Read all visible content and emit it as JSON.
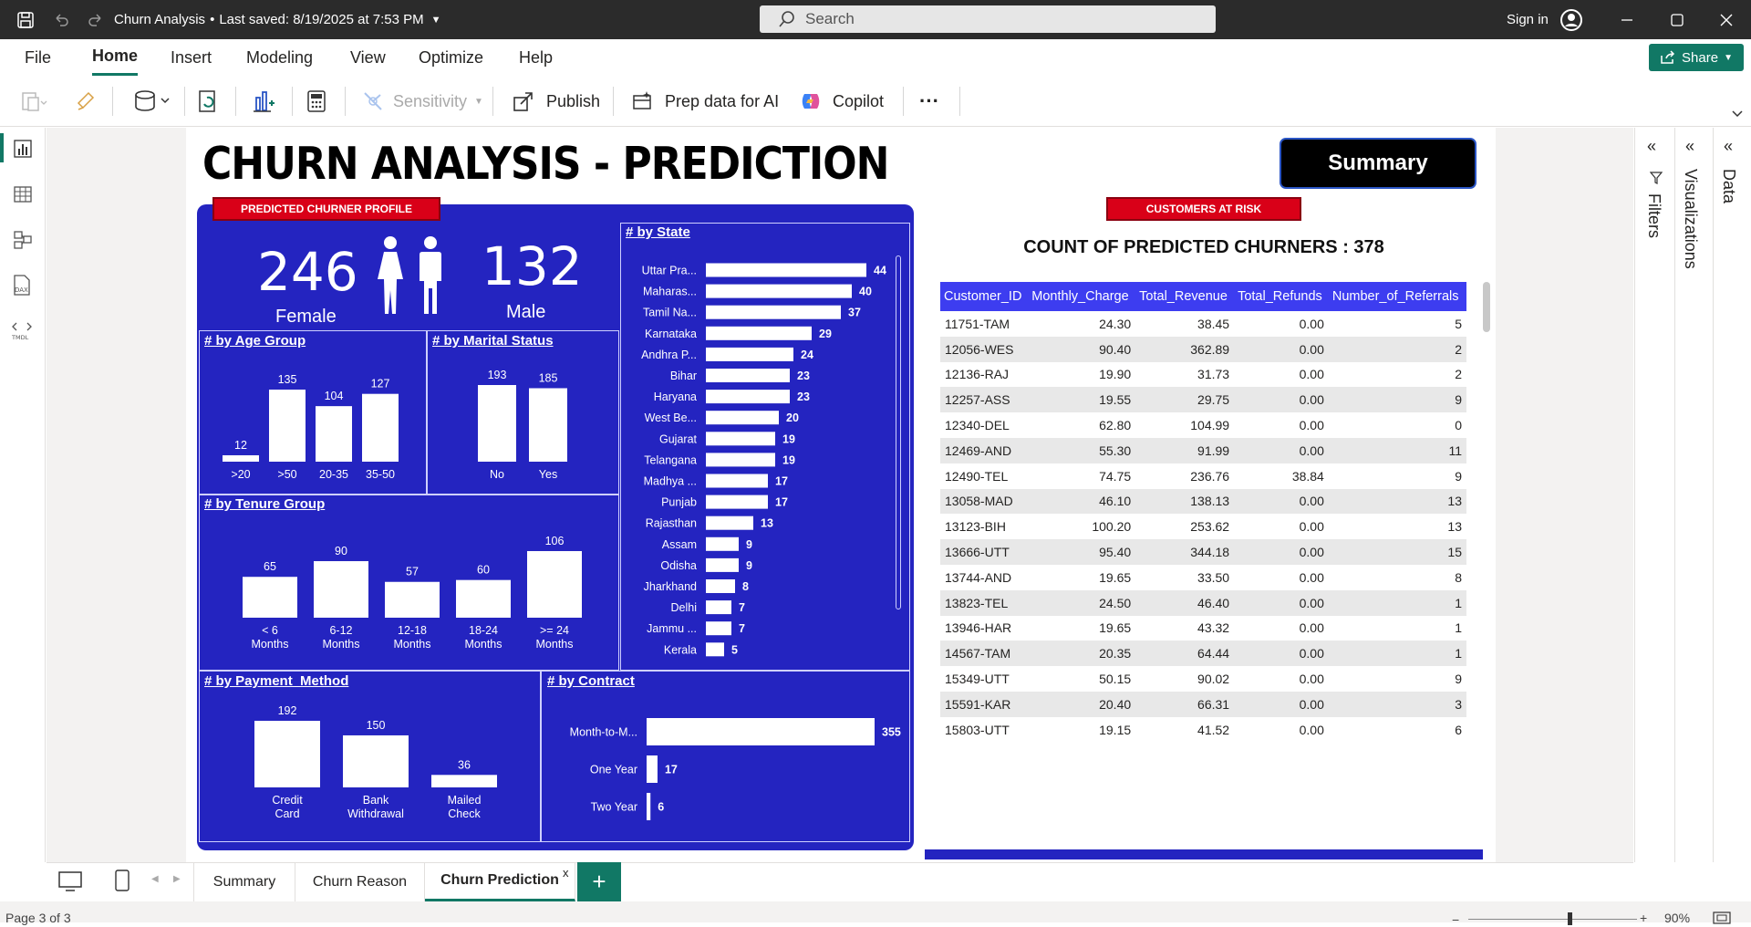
{
  "app": {
    "title": "Churn Analysis",
    "saved": "Last saved: 8/19/2025 at 7:53 PM",
    "search_placeholder": "Search",
    "signin": "Sign in"
  },
  "menu": [
    "File",
    "Home",
    "Insert",
    "Modeling",
    "View",
    "Optimize",
    "Help"
  ],
  "share_label": "Share",
  "toolbar": {
    "sensitivity": "Sensitivity",
    "publish": "Publish",
    "prep_ai": "Prep data for AI",
    "copilot": "Copilot",
    "more": "···"
  },
  "right_panes": [
    "Filters",
    "Visualizations",
    "Data"
  ],
  "report": {
    "title": "CHURN ANALYSIS - PREDICTION",
    "summary_button": "Summary",
    "profile_tag": "PREDICTED CHURNER PROFILE",
    "risk_tag": "CUSTOMERS AT RISK",
    "female_count": "246",
    "female_label": "Female",
    "male_count": "132",
    "male_label": "Male",
    "count_label": "COUNT OF PREDICTED CHURNERS : 378"
  },
  "chart_data": [
    {
      "type": "bar",
      "title": "# by Age Group",
      "categories": [
        ">20",
        ">50",
        "20-35",
        "35-50"
      ],
      "values": [
        12,
        135,
        104,
        127
      ]
    },
    {
      "type": "bar",
      "title": "# by Marital Status",
      "categories": [
        "No",
        "Yes"
      ],
      "values": [
        193,
        185
      ]
    },
    {
      "type": "bar",
      "title": "# by Tenure Group",
      "categories": [
        "< 6 Months",
        "6-12 Months",
        "12-18 Months",
        "18-24 Months",
        ">= 24 Months"
      ],
      "values": [
        65,
        90,
        57,
        60,
        106
      ]
    },
    {
      "type": "bar",
      "orientation": "horizontal",
      "title": "# by State",
      "categories": [
        "Uttar Pra...",
        "Maharas...",
        "Tamil Na...",
        "Karnataka",
        "Andhra P...",
        "Bihar",
        "Haryana",
        "West Be...",
        "Gujarat",
        "Telangana",
        "Madhya ...",
        "Punjab",
        "Rajasthan",
        "Assam",
        "Odisha",
        "Jharkhand",
        "Delhi",
        "Jammu ...",
        "Kerala"
      ],
      "values": [
        44,
        40,
        37,
        29,
        24,
        23,
        23,
        20,
        19,
        19,
        17,
        17,
        13,
        9,
        9,
        8,
        7,
        7,
        5
      ]
    },
    {
      "type": "bar",
      "title": "# by Payment_Method",
      "categories": [
        "Credit Card",
        "Bank Withdrawal",
        "Mailed Check"
      ],
      "values": [
        192,
        150,
        36
      ]
    },
    {
      "type": "bar",
      "orientation": "horizontal",
      "title": "# by Contract",
      "categories": [
        "Month-to-M...",
        "One Year",
        "Two Year"
      ],
      "values": [
        355,
        17,
        6
      ]
    }
  ],
  "table": {
    "columns": [
      "Customer_ID",
      "Monthly_Charge",
      "Total_Revenue",
      "Total_Refunds",
      "Number_of_Referrals"
    ],
    "rows": [
      [
        "11751-TAM",
        "24.30",
        "38.45",
        "0.00",
        "5"
      ],
      [
        "12056-WES",
        "90.40",
        "362.89",
        "0.00",
        "2"
      ],
      [
        "12136-RAJ",
        "19.90",
        "31.73",
        "0.00",
        "2"
      ],
      [
        "12257-ASS",
        "19.55",
        "29.75",
        "0.00",
        "9"
      ],
      [
        "12340-DEL",
        "62.80",
        "104.99",
        "0.00",
        "0"
      ],
      [
        "12469-AND",
        "55.30",
        "91.99",
        "0.00",
        "11"
      ],
      [
        "12490-TEL",
        "74.75",
        "236.76",
        "38.84",
        "9"
      ],
      [
        "13058-MAD",
        "46.10",
        "138.13",
        "0.00",
        "13"
      ],
      [
        "13123-BIH",
        "100.20",
        "253.62",
        "0.00",
        "13"
      ],
      [
        "13666-UTT",
        "95.40",
        "344.18",
        "0.00",
        "15"
      ],
      [
        "13744-AND",
        "19.65",
        "33.50",
        "0.00",
        "8"
      ],
      [
        "13823-TEL",
        "24.50",
        "46.40",
        "0.00",
        "1"
      ],
      [
        "13946-HAR",
        "19.65",
        "43.32",
        "0.00",
        "1"
      ],
      [
        "14567-TAM",
        "20.35",
        "64.44",
        "0.00",
        "1"
      ],
      [
        "15349-UTT",
        "50.15",
        "90.02",
        "0.00",
        "9"
      ],
      [
        "15591-KAR",
        "20.40",
        "66.31",
        "0.00",
        "3"
      ],
      [
        "15803-UTT",
        "19.15",
        "41.52",
        "0.00",
        "6"
      ]
    ]
  },
  "tabs": [
    "Summary",
    "Churn Reason",
    "Churn Prediction"
  ],
  "tab_close": "x",
  "tab_add": "+",
  "status": {
    "page": "Page 3 of 3",
    "zoom": "90%"
  },
  "colors": {
    "panel": "#2424c0",
    "header": "#3d3df0",
    "tag": "#d90018",
    "accent": "#117865"
  }
}
